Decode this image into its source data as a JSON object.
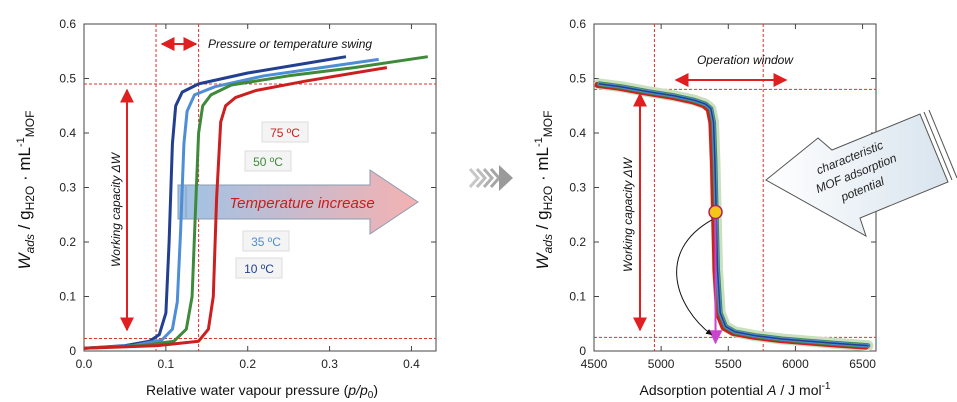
{
  "colors": {
    "c75": "#cc2020",
    "c50": "#3f8a3a",
    "c35": "#4d8ed6",
    "c10": "#233f8f",
    "ref": "#e03030",
    "magenta": "#cc44cc",
    "marker": "#f5c518"
  },
  "chart_data": [
    {
      "type": "line",
      "xlabel_main": "Relative water vapour pressure (",
      "xlabel_var": "p/p",
      "xlabel_sub": "0",
      "xlabel_end": ")",
      "ylabel": {
        "w": "W",
        "wsub": "ads",
        "mid": " / g",
        "h2o": "H2O",
        "dot": " · mL",
        "exp": "-1",
        "mof": "MOF"
      },
      "xlim": [
        0,
        0.43
      ],
      "ylim": [
        0,
        0.6
      ],
      "xticks": [
        "0.0",
        "0.1",
        "0.2",
        "0.3",
        "0.4"
      ],
      "yticks": [
        "0",
        "0.1",
        "0.2",
        "0.3",
        "0.4",
        "0.5",
        "0.6"
      ],
      "series": [
        {
          "name": "10 °C",
          "label": "10 ºC",
          "color_key": "c10",
          "x": [
            0.0,
            0.05,
            0.08,
            0.092,
            0.1,
            0.104,
            0.108,
            0.112,
            0.12,
            0.14,
            0.2,
            0.26,
            0.32
          ],
          "y": [
            0.005,
            0.01,
            0.018,
            0.03,
            0.07,
            0.2,
            0.38,
            0.45,
            0.475,
            0.49,
            0.51,
            0.525,
            0.54
          ]
        },
        {
          "name": "35 °C",
          "label": "35 ºC",
          "color_key": "c35",
          "x": [
            0.0,
            0.06,
            0.095,
            0.108,
            0.114,
            0.118,
            0.122,
            0.126,
            0.135,
            0.16,
            0.22,
            0.29,
            0.36
          ],
          "y": [
            0.005,
            0.01,
            0.02,
            0.04,
            0.09,
            0.22,
            0.38,
            0.44,
            0.47,
            0.485,
            0.505,
            0.52,
            0.535
          ]
        },
        {
          "name": "50 °C",
          "label": "50 ºC",
          "color_key": "c50",
          "x": [
            0.0,
            0.07,
            0.11,
            0.125,
            0.132,
            0.136,
            0.14,
            0.145,
            0.155,
            0.18,
            0.25,
            0.33,
            0.42
          ],
          "y": [
            0.005,
            0.01,
            0.018,
            0.04,
            0.1,
            0.25,
            0.4,
            0.45,
            0.47,
            0.488,
            0.505,
            0.52,
            0.54
          ]
        },
        {
          "name": "75 °C",
          "label": "75 ºC",
          "color_key": "c75",
          "x": [
            0.0,
            0.09,
            0.14,
            0.152,
            0.158,
            0.162,
            0.167,
            0.173,
            0.185,
            0.21,
            0.27,
            0.33,
            0.37
          ],
          "y": [
            0.005,
            0.01,
            0.018,
            0.04,
            0.1,
            0.28,
            0.42,
            0.45,
            0.465,
            0.478,
            0.495,
            0.51,
            0.52
          ]
        }
      ],
      "ref_lines": {
        "upper_y": 0.49,
        "lower_y": 0.023,
        "vline1_x": 0.088,
        "vline2_x": 0.14
      },
      "annotations": {
        "swing": "Pressure or temperature swing",
        "working": "Working capacity ΔW",
        "temp_increase": "Temperature increase"
      }
    },
    {
      "type": "line",
      "xlabel_main": "Adsorption potential ",
      "xlabel_var": "A",
      "xlabel_end": " / J mol",
      "xlabel_exp": "-1",
      "ylabel": {
        "w": "W",
        "wsub": "ads",
        "mid": " / g",
        "h2o": "H2O",
        "dot": " · mL",
        "exp": "-1",
        "mof": "MOF"
      },
      "xlim": [
        4500,
        6600
      ],
      "ylim": [
        0,
        0.6
      ],
      "xticks": [
        "4500",
        "5000",
        "5500",
        "6000",
        "6500"
      ],
      "yticks": [
        "0",
        "0.1",
        "0.2",
        "0.3",
        "0.4",
        "0.5",
        "0.6"
      ],
      "series": [
        {
          "name": "characteristic curve",
          "x": [
            4540,
            4700,
            4900,
            5100,
            5250,
            5330,
            5370,
            5390,
            5400,
            5410,
            5420,
            5440,
            5480,
            5550,
            5700,
            5900,
            6100,
            6300,
            6540
          ],
          "y": [
            0.49,
            0.485,
            0.476,
            0.468,
            0.46,
            0.453,
            0.445,
            0.42,
            0.35,
            0.25,
            0.15,
            0.07,
            0.045,
            0.035,
            0.028,
            0.022,
            0.018,
            0.014,
            0.01
          ]
        }
      ],
      "ref_lines": {
        "upper_y": 0.48,
        "lower_y": 0.025,
        "vline1_x": 4950,
        "vline2_x": 5760
      },
      "marker": {
        "x": 5405,
        "y": 0.255
      },
      "annotations": {
        "window": "Operation window",
        "working": "Working capacity ΔW",
        "mof": [
          "characteristic",
          "MOF adsorption",
          "potential"
        ]
      }
    }
  ]
}
